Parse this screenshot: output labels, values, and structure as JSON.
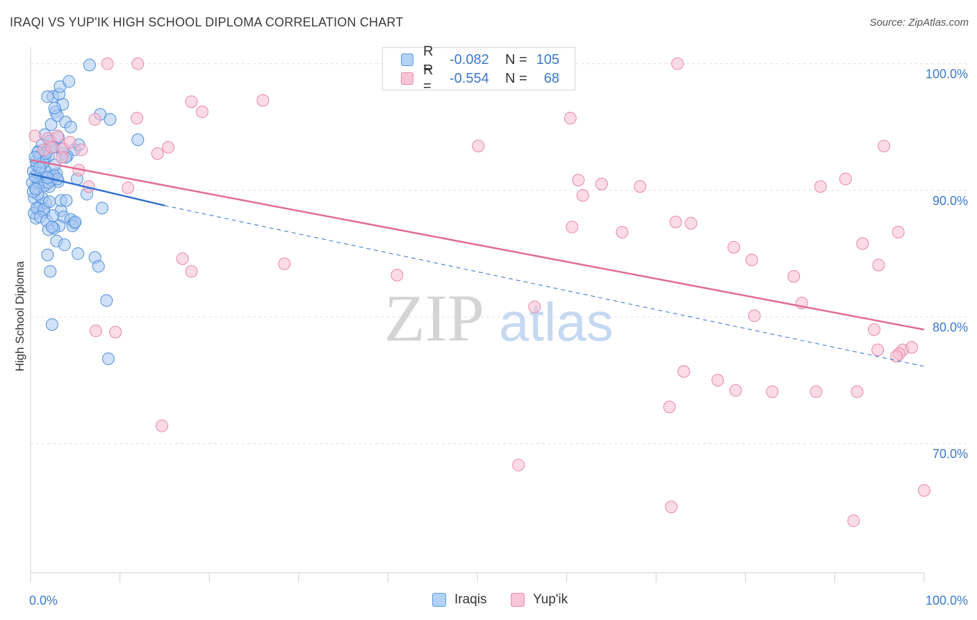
{
  "title": "IRAQI VS YUP'IK HIGH SCHOOL DIPLOMA CORRELATION CHART",
  "source": "Source: ZipAtlas.com",
  "watermark": {
    "zip": "ZIP",
    "atlas": "atlas"
  },
  "colors": {
    "blue_fill": "#a9c9f2",
    "blue_stroke": "#4d8fdc",
    "blue_line": "#2f6fd0",
    "pink_fill": "#f7bdd0",
    "pink_stroke": "#e986ab",
    "pink_line": "#e26b95",
    "tick_label": "#3a78cc",
    "grid": "#e0e0e0"
  },
  "legend": {
    "r_label": "R =",
    "n_label": "N =",
    "series": [
      {
        "r": "-0.082",
        "n": "105"
      },
      {
        "r": "-0.554",
        "n": "68"
      }
    ]
  },
  "chart_data": {
    "type": "scatter",
    "title": "IRAQI VS YUP'IK HIGH SCHOOL DIPLOMA CORRELATION CHART",
    "xlabel": "",
    "ylabel": "High School Diploma",
    "xlim": [
      0,
      100
    ],
    "ylim": [
      59.8,
      101.3
    ],
    "x_tick_labels": {
      "left": "0.0%",
      "right": "100.0%"
    },
    "y_ticks": [
      {
        "value": 70,
        "label": "70.0%"
      },
      {
        "value": 80,
        "label": "80.0%"
      },
      {
        "value": 90,
        "label": "90.0%"
      },
      {
        "value": 100,
        "label": "100.0%"
      }
    ],
    "x_minor_ticks": [
      0,
      10,
      20,
      30,
      40,
      50,
      60,
      70,
      80,
      90,
      100
    ],
    "series": [
      {
        "name": "Iraqis",
        "trend": {
          "x0": 0,
          "y0": 91.3,
          "x1": 15,
          "y1": 88.8,
          "dash_x1": 100,
          "dash_y1": 76.1
        },
        "points": [
          [
            0.3,
            91.5
          ],
          [
            0.5,
            90.2
          ],
          [
            0.7,
            92.0
          ],
          [
            0.4,
            89.4
          ],
          [
            0.9,
            88.6
          ],
          [
            1.0,
            90.8
          ],
          [
            0.6,
            87.8
          ],
          [
            1.2,
            91.9
          ],
          [
            1.4,
            90.6
          ],
          [
            1.6,
            92.6
          ],
          [
            1.9,
            91.1
          ],
          [
            2.1,
            90.3
          ],
          [
            2.4,
            91.0
          ],
          [
            1.1,
            88.8
          ],
          [
            1.5,
            88.3
          ],
          [
            1.7,
            89.0
          ],
          [
            0.8,
            91.0
          ],
          [
            0.2,
            90.6
          ],
          [
            0.9,
            93.1
          ],
          [
            1.3,
            93.6
          ],
          [
            1.8,
            93.1
          ],
          [
            2.0,
            92.7
          ],
          [
            2.2,
            93.5
          ],
          [
            2.6,
            93.4
          ],
          [
            2.9,
            91.3
          ],
          [
            3.1,
            90.7
          ],
          [
            3.4,
            88.4
          ],
          [
            1.6,
            94.4
          ],
          [
            2.3,
            95.2
          ],
          [
            2.8,
            96.2
          ],
          [
            3.0,
            95.9
          ],
          [
            3.6,
            96.8
          ],
          [
            3.9,
            95.4
          ],
          [
            2.5,
            97.4
          ],
          [
            3.2,
            97.6
          ],
          [
            1.9,
            97.4
          ],
          [
            3.3,
            98.2
          ],
          [
            4.3,
            98.6
          ],
          [
            6.6,
            99.9
          ],
          [
            2.7,
            96.5
          ],
          [
            4.5,
            95.0
          ],
          [
            7.8,
            96.0
          ],
          [
            8.9,
            95.6
          ],
          [
            4.9,
            93.2
          ],
          [
            5.4,
            93.6
          ],
          [
            12.0,
            94.0
          ],
          [
            3.6,
            92.9
          ],
          [
            4.1,
            92.7
          ],
          [
            5.2,
            90.9
          ],
          [
            6.3,
            89.7
          ],
          [
            8.0,
            88.6
          ],
          [
            3.4,
            89.2
          ],
          [
            3.7,
            87.9
          ],
          [
            4.5,
            87.7
          ],
          [
            4.9,
            87.4
          ],
          [
            3.2,
            87.2
          ],
          [
            2.6,
            87.0
          ],
          [
            2.0,
            86.9
          ],
          [
            2.9,
            86.0
          ],
          [
            3.8,
            85.7
          ],
          [
            5.3,
            85.0
          ],
          [
            7.2,
            84.7
          ],
          [
            7.6,
            84.0
          ],
          [
            1.9,
            84.9
          ],
          [
            2.2,
            83.6
          ],
          [
            8.5,
            81.3
          ],
          [
            2.4,
            79.4
          ],
          [
            8.7,
            76.7
          ],
          [
            0.6,
            92.3
          ],
          [
            0.9,
            90.5
          ],
          [
            1.3,
            89.4
          ],
          [
            1.6,
            90.4
          ],
          [
            2.3,
            90.8
          ],
          [
            1.0,
            92.7
          ],
          [
            1.2,
            91.4
          ],
          [
            0.5,
            91.1
          ],
          [
            0.8,
            89.7
          ],
          [
            1.7,
            91.5
          ],
          [
            2.0,
            90.6
          ],
          [
            2.6,
            91.2
          ],
          [
            3.0,
            90.9
          ],
          [
            0.4,
            88.2
          ],
          [
            0.7,
            88.6
          ],
          [
            1.5,
            88.5
          ],
          [
            2.1,
            89.1
          ],
          [
            1.1,
            87.9
          ],
          [
            1.8,
            87.6
          ],
          [
            2.4,
            87.1
          ],
          [
            4.7,
            87.2
          ],
          [
            5.0,
            87.5
          ],
          [
            3.5,
            93.3
          ],
          [
            1.4,
            92.2
          ],
          [
            2.7,
            92.0
          ],
          [
            0.3,
            89.9
          ],
          [
            0.6,
            90.1
          ],
          [
            1.0,
            91.8
          ],
          [
            2.2,
            93.9
          ],
          [
            1.7,
            92.9
          ],
          [
            3.9,
            92.6
          ],
          [
            0.8,
            93.0
          ],
          [
            1.9,
            91.0
          ],
          [
            3.1,
            94.2
          ],
          [
            0.5,
            92.6
          ],
          [
            2.5,
            88.0
          ],
          [
            4.0,
            89.2
          ]
        ]
      },
      {
        "name": "Yup'ik",
        "trend": {
          "x0": 0,
          "y0": 92.4,
          "x1": 100,
          "y1": 79.0
        },
        "points": [
          [
            0.5,
            94.3
          ],
          [
            2.0,
            94.1
          ],
          [
            3.0,
            94.3
          ],
          [
            1.5,
            93.2
          ],
          [
            2.4,
            93.4
          ],
          [
            3.7,
            93.3
          ],
          [
            4.4,
            93.8
          ],
          [
            5.7,
            93.2
          ],
          [
            3.5,
            92.6
          ],
          [
            5.4,
            91.6
          ],
          [
            8.6,
            100.0
          ],
          [
            12.0,
            100.0
          ],
          [
            11.9,
            95.7
          ],
          [
            7.2,
            95.6
          ],
          [
            18.0,
            97.0
          ],
          [
            19.2,
            96.2
          ],
          [
            26.0,
            97.1
          ],
          [
            15.4,
            93.4
          ],
          [
            14.2,
            92.9
          ],
          [
            6.5,
            90.3
          ],
          [
            10.9,
            90.2
          ],
          [
            17.0,
            84.6
          ],
          [
            18.0,
            83.6
          ],
          [
            28.4,
            84.2
          ],
          [
            41.0,
            83.3
          ],
          [
            7.3,
            78.9
          ],
          [
            9.5,
            78.8
          ],
          [
            14.7,
            71.4
          ],
          [
            60.4,
            95.7
          ],
          [
            50.1,
            93.5
          ],
          [
            61.3,
            90.8
          ],
          [
            61.8,
            89.6
          ],
          [
            63.9,
            90.5
          ],
          [
            68.2,
            90.3
          ],
          [
            60.6,
            87.1
          ],
          [
            66.2,
            86.7
          ],
          [
            72.2,
            87.5
          ],
          [
            73.9,
            87.4
          ],
          [
            78.7,
            85.5
          ],
          [
            81.0,
            80.1
          ],
          [
            80.7,
            84.5
          ],
          [
            85.4,
            83.2
          ],
          [
            86.3,
            81.1
          ],
          [
            88.4,
            90.3
          ],
          [
            91.2,
            90.9
          ],
          [
            95.5,
            93.5
          ],
          [
            93.1,
            85.8
          ],
          [
            97.1,
            86.7
          ],
          [
            94.9,
            84.1
          ],
          [
            94.4,
            79.0
          ],
          [
            97.6,
            77.4
          ],
          [
            97.2,
            77.1
          ],
          [
            94.8,
            77.4
          ],
          [
            96.9,
            76.9
          ],
          [
            98.6,
            77.6
          ],
          [
            73.1,
            75.7
          ],
          [
            76.9,
            75.0
          ],
          [
            78.9,
            74.2
          ],
          [
            83.0,
            74.1
          ],
          [
            87.9,
            74.1
          ],
          [
            92.5,
            74.1
          ],
          [
            71.5,
            72.9
          ],
          [
            54.6,
            68.3
          ],
          [
            71.7,
            65.0
          ],
          [
            92.1,
            63.9
          ],
          [
            100.0,
            66.3
          ],
          [
            56.4,
            80.8
          ],
          [
            72.4,
            100.0
          ]
        ]
      }
    ]
  }
}
